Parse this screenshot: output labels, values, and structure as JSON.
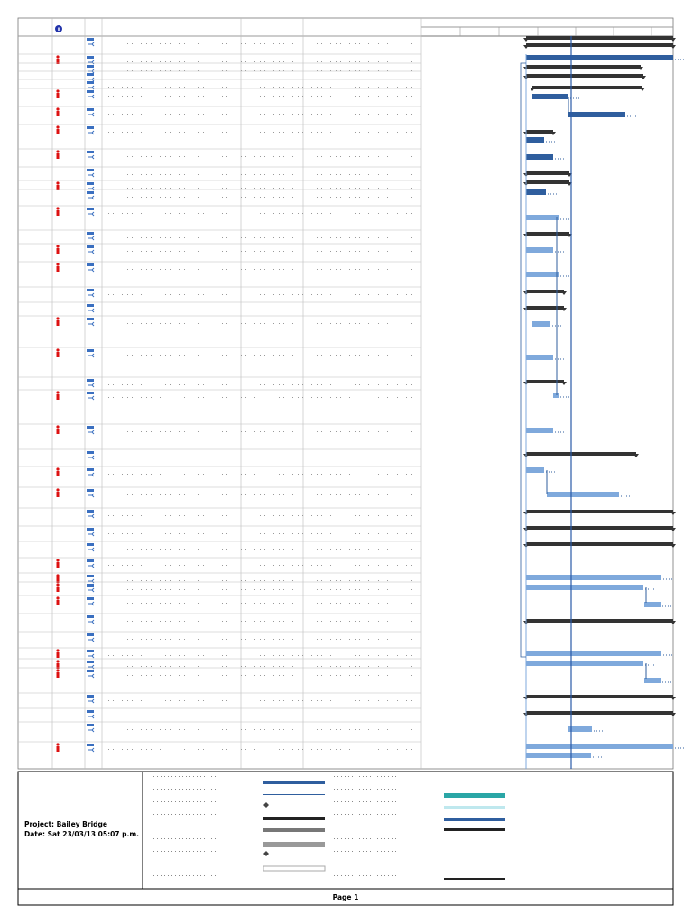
{
  "footer": {
    "project": "Project: Bailey Bridge",
    "date": "Date: Sat 23/03/13 05:07 p.m.",
    "page": "Page 1"
  }
}
